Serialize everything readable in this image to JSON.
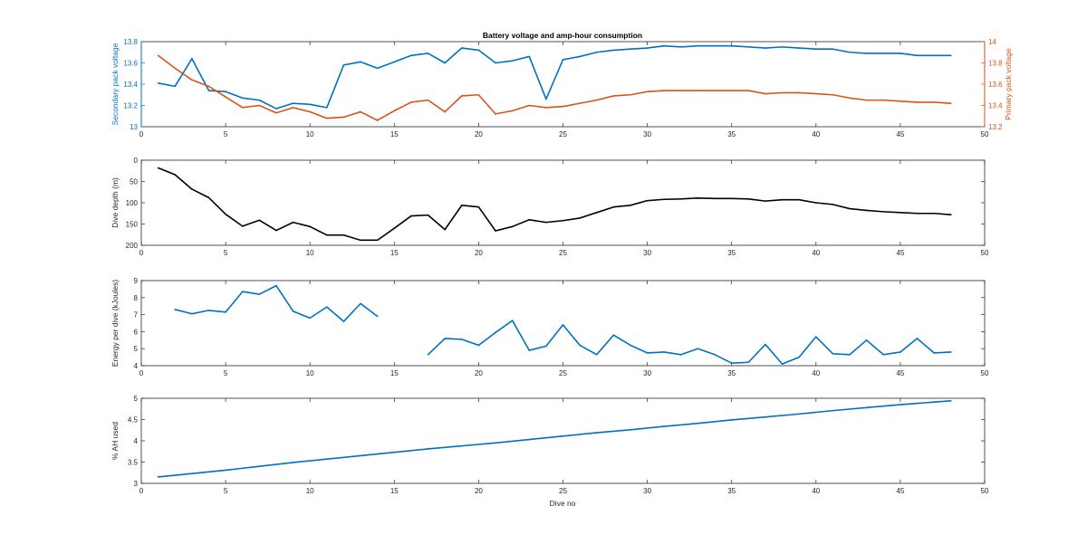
{
  "figure": {
    "title": "Battery voltage and amp-hour consumption",
    "xlabel": "Dive no"
  },
  "colors": {
    "blue": "#0072bd",
    "orange": "#d95319",
    "black": "#000000",
    "axis": "#262626"
  },
  "chart_data": [
    {
      "type": "line",
      "title": "Battery voltage and amp-hour consumption",
      "xlabel": "",
      "ylabel": "Secondary pack voltage",
      "ylabel_right": "Primary pack voltage",
      "xlim": [
        0,
        50
      ],
      "ylim": [
        13,
        13.8
      ],
      "ylim_right": [
        13.2,
        14
      ],
      "xticks": [
        0,
        5,
        10,
        15,
        20,
        25,
        30,
        35,
        40,
        45,
        50
      ],
      "yticks": [
        "13",
        "13.2",
        "13.4",
        "13.6",
        "13.8"
      ],
      "yticks_right": [
        "13.2",
        "13.4",
        "13.6",
        "13.8",
        "14"
      ],
      "grid": false,
      "series": [
        {
          "axis": "left",
          "color": "#0072bd",
          "x": [
            1,
            2,
            3,
            4,
            5,
            6,
            7,
            8,
            9,
            10,
            11,
            12,
            13,
            14,
            15,
            16,
            17,
            18,
            19,
            20,
            21,
            22,
            23,
            24,
            25,
            26,
            27,
            28,
            29,
            30,
            31,
            32,
            33,
            34,
            35,
            36,
            37,
            38,
            39,
            40,
            41,
            42,
            43,
            44,
            45,
            46,
            47,
            48
          ],
          "values": [
            13.41,
            13.38,
            13.64,
            13.34,
            13.33,
            13.27,
            13.25,
            13.17,
            13.22,
            13.21,
            13.18,
            13.58,
            13.61,
            13.55,
            13.61,
            13.67,
            13.69,
            13.6,
            13.74,
            13.72,
            13.6,
            13.62,
            13.66,
            13.26,
            13.63,
            13.66,
            13.7,
            13.72,
            13.73,
            13.74,
            13.76,
            13.75,
            13.76,
            13.76,
            13.76,
            13.75,
            13.74,
            13.75,
            13.74,
            13.73,
            13.73,
            13.7,
            13.69,
            13.69,
            13.69,
            13.67,
            13.67,
            13.67
          ]
        },
        {
          "axis": "right",
          "color": "#d95319",
          "x": [
            1,
            2,
            3,
            4,
            5,
            6,
            7,
            8,
            9,
            10,
            11,
            12,
            13,
            14,
            15,
            16,
            17,
            18,
            19,
            20,
            21,
            22,
            23,
            24,
            25,
            26,
            27,
            28,
            29,
            30,
            31,
            32,
            33,
            34,
            35,
            36,
            37,
            38,
            39,
            40,
            41,
            42,
            43,
            44,
            45,
            46,
            47,
            48
          ],
          "values": [
            13.87,
            13.75,
            13.64,
            13.58,
            13.48,
            13.38,
            13.4,
            13.33,
            13.38,
            13.34,
            13.28,
            13.29,
            13.34,
            13.26,
            13.35,
            13.43,
            13.45,
            13.34,
            13.49,
            13.5,
            13.32,
            13.35,
            13.4,
            13.38,
            13.39,
            13.42,
            13.45,
            13.49,
            13.5,
            13.53,
            13.54,
            13.54,
            13.54,
            13.54,
            13.54,
            13.54,
            13.51,
            13.52,
            13.52,
            13.51,
            13.5,
            13.47,
            13.45,
            13.45,
            13.44,
            13.43,
            13.43,
            13.42
          ]
        }
      ]
    },
    {
      "type": "line",
      "xlabel": "",
      "ylabel": "Dive depth (m)",
      "xlim": [
        0,
        50
      ],
      "ylim": [
        0,
        200
      ],
      "y_reversed": true,
      "xticks": [
        0,
        5,
        10,
        15,
        20,
        25,
        30,
        35,
        40,
        45,
        50
      ],
      "yticks": [
        "0",
        "50",
        "100",
        "150",
        "200"
      ],
      "grid": false,
      "series": [
        {
          "axis": "left",
          "color": "#000000",
          "x": [
            1,
            2,
            3,
            4,
            5,
            6,
            7,
            8,
            9,
            10,
            11,
            12,
            13,
            14,
            15,
            16,
            17,
            18,
            19,
            20,
            21,
            22,
            23,
            24,
            25,
            26,
            27,
            28,
            29,
            30,
            31,
            32,
            33,
            34,
            35,
            36,
            37,
            38,
            39,
            40,
            41,
            42,
            43,
            44,
            45,
            46,
            47,
            48
          ],
          "values": [
            18,
            34,
            68,
            88,
            127,
            155,
            141,
            165,
            146,
            156,
            176,
            176,
            188,
            188,
            160,
            131,
            129,
            163,
            106,
            110,
            166,
            156,
            140,
            146,
            142,
            136,
            123,
            110,
            106,
            95,
            92,
            91,
            89,
            90,
            90,
            91,
            96,
            93,
            93,
            100,
            104,
            114,
            118,
            121,
            123,
            125,
            125,
            128
          ]
        }
      ]
    },
    {
      "type": "line",
      "xlabel": "",
      "ylabel": "Energy per dive (kJoules)",
      "xlim": [
        0,
        50
      ],
      "ylim": [
        4,
        9
      ],
      "xticks": [
        0,
        5,
        10,
        15,
        20,
        25,
        30,
        35,
        40,
        45,
        50
      ],
      "yticks": [
        "4",
        "5",
        "6",
        "7",
        "8",
        "9"
      ],
      "grid": false,
      "series": [
        {
          "axis": "left",
          "color": "#0072bd",
          "x": [
            2,
            3,
            4,
            5,
            6,
            7,
            8,
            9,
            10,
            11,
            12,
            13,
            14
          ],
          "values": [
            7.3,
            7.05,
            7.25,
            7.15,
            8.35,
            8.2,
            8.7,
            7.2,
            6.8,
            7.45,
            6.6,
            7.65,
            6.9
          ]
        },
        {
          "axis": "left",
          "color": "#0072bd",
          "x": [
            17,
            18,
            19,
            20,
            21,
            22,
            23,
            24,
            25,
            26,
            27,
            28,
            29,
            30,
            31,
            32,
            33,
            34,
            35,
            36,
            37,
            38,
            39,
            40,
            41,
            42,
            43,
            44,
            45,
            46,
            47,
            48
          ],
          "values": [
            4.65,
            5.6,
            5.55,
            5.2,
            5.95,
            6.65,
            4.9,
            5.15,
            6.4,
            5.2,
            4.65,
            5.8,
            5.2,
            4.75,
            4.8,
            4.65,
            5.0,
            4.65,
            4.15,
            4.2,
            5.25,
            4.1,
            4.5,
            5.7,
            4.7,
            4.65,
            5.5,
            4.65,
            4.8,
            5.6,
            4.75,
            4.8
          ]
        }
      ]
    },
    {
      "type": "line",
      "xlabel": "Dive no",
      "ylabel": "% AH used",
      "xlim": [
        0,
        50
      ],
      "ylim": [
        3,
        5
      ],
      "xticks": [
        0,
        5,
        10,
        15,
        20,
        25,
        30,
        35,
        40,
        45,
        50
      ],
      "yticks": [
        "3",
        "3.5",
        "4",
        "4.5",
        "5"
      ],
      "grid": false,
      "series": [
        {
          "axis": "left",
          "color": "#0072bd",
          "x": [
            1,
            3,
            5,
            7,
            9,
            11,
            13,
            15,
            17,
            19,
            21,
            23,
            25,
            27,
            29,
            31,
            33,
            35,
            37,
            39,
            41,
            43,
            45,
            47,
            48
          ],
          "values": [
            3.15,
            3.23,
            3.31,
            3.4,
            3.49,
            3.57,
            3.65,
            3.73,
            3.81,
            3.88,
            3.95,
            4.03,
            4.11,
            4.19,
            4.26,
            4.34,
            4.41,
            4.49,
            4.56,
            4.63,
            4.71,
            4.78,
            4.85,
            4.91,
            4.94
          ]
        }
      ]
    }
  ]
}
